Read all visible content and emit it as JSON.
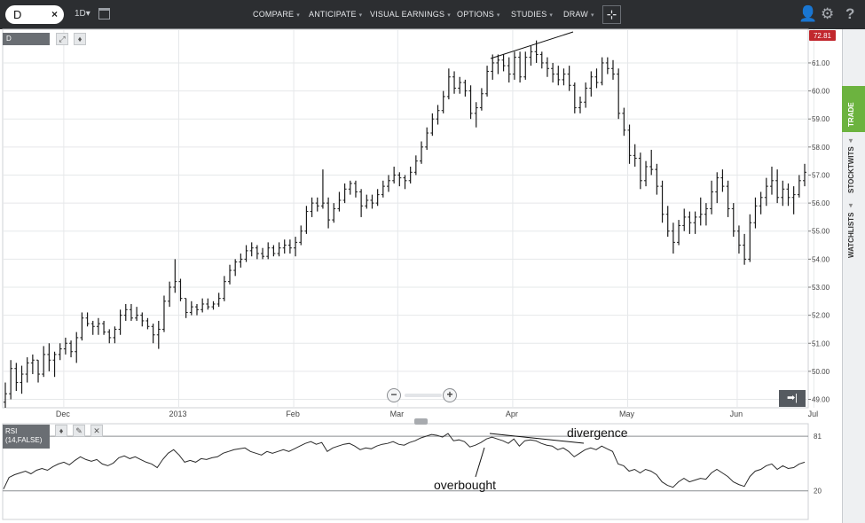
{
  "toolbar": {
    "symbol": "D",
    "clear_label": "×",
    "period": "1D",
    "period_caret": "▾",
    "menus": [
      {
        "label": "COMPARE"
      },
      {
        "label": "ANTICIPATE"
      },
      {
        "label": "VISUAL EARNINGS"
      },
      {
        "label": "OPTIONS"
      },
      {
        "label": "STUDIES"
      },
      {
        "label": "DRAW"
      }
    ],
    "menu_caret": "▾",
    "crosshair_glyph": "⊹",
    "user_glyph": "👤",
    "settings_glyph": "⚙",
    "help_glyph": "?"
  },
  "icons": {
    "calendar": "calendar-icon",
    "crosshair": "crosshair-icon",
    "user": "user-icon",
    "settings": "gear-icon",
    "help": "help-icon",
    "expand": "expand-icon",
    "move": "move-icon",
    "edit": "pencil-icon",
    "close": "close-icon"
  },
  "sidebar": {
    "tabs": [
      {
        "label": "TRADE"
      },
      {
        "label": "STOCKTWITS"
      },
      {
        "label": "WATCHLISTS"
      }
    ],
    "tab_arrow": "◂"
  },
  "panel": {
    "symbol_tag": "D",
    "expand_glyph": "⤢",
    "move_glyph": "♦",
    "rsi_tag_line1": "RSI",
    "rsi_tag_line2": "(14,FALSE)",
    "edit_glyph": "✎",
    "close_glyph": "✕",
    "zoom_out": "−",
    "zoom_in": "+",
    "scroll_end": "➡|"
  },
  "colors": {
    "toolbar_bg": "#2c2e31",
    "trade_tab": "#6cb33f",
    "price_badge": "#c1272d",
    "bars": "#1a1a1a",
    "grid": "#e6e8ea"
  },
  "chart_data": [
    {
      "type": "ohlc",
      "symbol": "D",
      "last_price": "72.81",
      "x_ticks": [
        "Dec",
        "2013",
        "Feb",
        "Mar",
        "Apr",
        "May",
        "Jun",
        "Jul"
      ],
      "y_ticks": [
        "61.00",
        "60.00",
        "59.00",
        "58.00",
        "57.00",
        "56.00",
        "55.00",
        "54.00",
        "53.00",
        "52.00",
        "51.00",
        "50.00",
        "49.00"
      ],
      "ylim": [
        48.7,
        62.2
      ],
      "grid": true,
      "bars": [
        [
          48.9,
          49.6,
          48.7,
          49.2
        ],
        [
          49.2,
          50.4,
          49.0,
          50.1
        ],
        [
          50.1,
          50.3,
          49.3,
          49.6
        ],
        [
          49.6,
          50.2,
          49.2,
          49.9
        ],
        [
          49.9,
          50.5,
          49.6,
          50.3
        ],
        [
          50.3,
          50.6,
          49.9,
          50.4
        ],
        [
          50.4,
          50.4,
          49.6,
          49.9
        ],
        [
          49.9,
          50.9,
          49.8,
          50.6
        ],
        [
          50.6,
          51.0,
          50.0,
          50.4
        ],
        [
          50.4,
          50.7,
          49.8,
          50.6
        ],
        [
          50.6,
          51.0,
          50.4,
          50.8
        ],
        [
          50.8,
          51.2,
          50.6,
          51.0
        ],
        [
          51.0,
          51.1,
          50.5,
          50.7
        ],
        [
          50.7,
          51.4,
          50.3,
          51.2
        ],
        [
          51.2,
          52.1,
          51.1,
          51.9
        ],
        [
          51.9,
          52.1,
          51.6,
          51.7
        ],
        [
          51.7,
          51.8,
          51.3,
          51.6
        ],
        [
          51.6,
          51.9,
          51.3,
          51.7
        ],
        [
          51.7,
          51.8,
          51.3,
          51.4
        ],
        [
          51.4,
          51.5,
          51.0,
          51.2
        ],
        [
          51.2,
          51.6,
          51.0,
          51.5
        ],
        [
          51.5,
          52.2,
          51.3,
          52.0
        ],
        [
          52.0,
          52.4,
          51.8,
          52.2
        ],
        [
          52.2,
          52.4,
          51.8,
          51.9
        ],
        [
          51.9,
          52.3,
          51.8,
          52.0
        ],
        [
          52.0,
          52.1,
          51.6,
          51.8
        ],
        [
          51.8,
          51.9,
          51.5,
          51.6
        ],
        [
          51.6,
          51.7,
          51.0,
          51.3
        ],
        [
          51.3,
          51.8,
          50.8,
          51.5
        ],
        [
          51.5,
          52.7,
          51.4,
          52.5
        ],
        [
          52.5,
          53.2,
          52.3,
          53.0
        ],
        [
          53.0,
          54.0,
          52.8,
          53.2
        ],
        [
          53.2,
          53.3,
          52.5,
          52.6
        ],
        [
          52.6,
          52.6,
          51.9,
          52.1
        ],
        [
          52.1,
          52.5,
          52.0,
          52.3
        ],
        [
          52.3,
          52.4,
          52.0,
          52.2
        ],
        [
          52.2,
          52.6,
          52.1,
          52.4
        ],
        [
          52.4,
          52.6,
          52.2,
          52.3
        ],
        [
          52.3,
          52.5,
          52.2,
          52.4
        ],
        [
          52.4,
          52.8,
          52.3,
          52.6
        ],
        [
          52.6,
          53.4,
          52.5,
          53.2
        ],
        [
          53.2,
          53.8,
          53.1,
          53.6
        ],
        [
          53.6,
          54.0,
          53.4,
          53.9
        ],
        [
          53.9,
          54.2,
          53.7,
          54.0
        ],
        [
          54.0,
          54.5,
          53.9,
          54.3
        ],
        [
          54.3,
          54.6,
          54.1,
          54.4
        ],
        [
          54.4,
          54.5,
          54.0,
          54.2
        ],
        [
          54.2,
          54.4,
          54.0,
          54.1
        ],
        [
          54.1,
          54.6,
          54.0,
          54.4
        ],
        [
          54.4,
          54.5,
          54.1,
          54.2
        ],
        [
          54.2,
          54.6,
          54.1,
          54.4
        ],
        [
          54.4,
          54.7,
          54.2,
          54.5
        ],
        [
          54.5,
          54.7,
          54.2,
          54.4
        ],
        [
          54.4,
          54.8,
          54.1,
          54.6
        ],
        [
          54.6,
          55.2,
          54.5,
          55.0
        ],
        [
          55.0,
          55.9,
          54.9,
          55.7
        ],
        [
          55.7,
          56.2,
          55.5,
          56.0
        ],
        [
          56.0,
          56.2,
          55.7,
          55.9
        ],
        [
          55.9,
          57.2,
          55.8,
          56.0
        ],
        [
          56.0,
          56.2,
          55.1,
          55.4
        ],
        [
          55.4,
          56.0,
          55.3,
          55.8
        ],
        [
          55.8,
          56.4,
          55.7,
          56.1
        ],
        [
          56.1,
          56.7,
          56.0,
          56.5
        ],
        [
          56.5,
          56.8,
          56.3,
          56.7
        ],
        [
          56.7,
          56.8,
          56.2,
          56.4
        ],
        [
          56.4,
          56.5,
          55.5,
          55.9
        ],
        [
          55.9,
          56.3,
          55.8,
          56.1
        ],
        [
          56.1,
          56.3,
          55.8,
          56.0
        ],
        [
          56.0,
          56.5,
          55.9,
          56.3
        ],
        [
          56.3,
          56.8,
          56.2,
          56.6
        ],
        [
          56.6,
          57.0,
          56.4,
          56.8
        ],
        [
          56.8,
          57.3,
          56.7,
          57.0
        ],
        [
          57.0,
          57.1,
          56.6,
          56.9
        ],
        [
          56.9,
          57.0,
          56.5,
          56.8
        ],
        [
          56.8,
          57.3,
          56.7,
          57.1
        ],
        [
          57.1,
          57.7,
          57.0,
          57.5
        ],
        [
          57.5,
          58.2,
          57.4,
          58.0
        ],
        [
          58.0,
          58.7,
          57.9,
          58.5
        ],
        [
          58.5,
          59.2,
          58.4,
          59.0
        ],
        [
          59.0,
          59.5,
          58.8,
          59.3
        ],
        [
          59.3,
          60.0,
          59.2,
          59.8
        ],
        [
          59.8,
          60.8,
          59.7,
          60.5
        ],
        [
          60.5,
          60.7,
          59.9,
          60.1
        ],
        [
          60.1,
          60.5,
          59.9,
          60.3
        ],
        [
          60.3,
          60.4,
          59.8,
          60.0
        ],
        [
          60.0,
          60.2,
          59.0,
          59.2
        ],
        [
          59.2,
          59.6,
          58.7,
          59.4
        ],
        [
          59.4,
          60.1,
          59.3,
          59.9
        ],
        [
          59.9,
          60.9,
          59.8,
          60.7
        ],
        [
          60.7,
          61.3,
          60.4,
          61.0
        ],
        [
          61.0,
          61.3,
          60.6,
          61.1
        ],
        [
          61.1,
          61.3,
          60.7,
          60.9
        ],
        [
          60.9,
          61.2,
          60.3,
          60.6
        ],
        [
          60.6,
          61.4,
          60.4,
          61.2
        ],
        [
          61.2,
          61.4,
          60.3,
          60.5
        ],
        [
          60.5,
          61.4,
          60.4,
          61.2
        ],
        [
          61.2,
          61.6,
          60.9,
          61.4
        ],
        [
          61.4,
          61.8,
          61.0,
          61.3
        ],
        [
          61.3,
          61.4,
          60.8,
          61.0
        ],
        [
          61.0,
          61.2,
          60.5,
          60.8
        ],
        [
          60.8,
          61.0,
          60.3,
          60.6
        ],
        [
          60.6,
          60.9,
          60.2,
          60.4
        ],
        [
          60.4,
          60.8,
          60.2,
          60.6
        ],
        [
          60.6,
          60.9,
          60.0,
          60.2
        ],
        [
          60.2,
          60.3,
          59.2,
          59.4
        ],
        [
          59.4,
          59.8,
          59.2,
          59.6
        ],
        [
          59.6,
          60.3,
          59.4,
          60.1
        ],
        [
          60.1,
          60.7,
          59.8,
          60.5
        ],
        [
          60.5,
          60.8,
          60.1,
          60.3
        ],
        [
          60.3,
          61.2,
          60.2,
          61.0
        ],
        [
          61.0,
          61.2,
          60.6,
          60.8
        ],
        [
          60.8,
          61.1,
          60.4,
          60.6
        ],
        [
          60.6,
          60.8,
          59.0,
          59.2
        ],
        [
          59.2,
          59.4,
          58.4,
          58.6
        ],
        [
          58.6,
          58.8,
          57.4,
          57.7
        ],
        [
          57.7,
          58.1,
          57.3,
          57.6
        ],
        [
          57.6,
          57.8,
          56.5,
          56.8
        ],
        [
          56.8,
          57.5,
          56.6,
          57.3
        ],
        [
          57.3,
          57.9,
          57.0,
          57.2
        ],
        [
          57.2,
          57.4,
          56.3,
          56.6
        ],
        [
          56.6,
          56.8,
          55.3,
          55.6
        ],
        [
          55.6,
          55.9,
          54.8,
          55.0
        ],
        [
          55.0,
          55.3,
          54.2,
          54.6
        ],
        [
          54.6,
          55.4,
          54.5,
          55.2
        ],
        [
          55.2,
          55.8,
          55.0,
          55.5
        ],
        [
          55.5,
          55.7,
          54.9,
          55.3
        ],
        [
          55.3,
          55.7,
          54.9,
          55.5
        ],
        [
          55.5,
          56.2,
          55.2,
          55.6
        ],
        [
          55.6,
          56.0,
          55.2,
          55.8
        ],
        [
          55.8,
          56.8,
          55.6,
          56.4
        ],
        [
          56.4,
          57.1,
          56.0,
          56.9
        ],
        [
          56.9,
          57.2,
          56.4,
          56.6
        ],
        [
          56.6,
          56.8,
          55.5,
          55.8
        ],
        [
          55.8,
          56.0,
          54.8,
          55.0
        ],
        [
          55.0,
          55.2,
          54.2,
          54.5
        ],
        [
          54.5,
          54.9,
          53.8,
          54.0
        ],
        [
          54.0,
          55.6,
          53.9,
          55.3
        ],
        [
          55.3,
          56.2,
          55.1,
          55.9
        ],
        [
          55.9,
          56.4,
          55.6,
          56.2
        ],
        [
          56.2,
          56.9,
          55.9,
          56.6
        ],
        [
          56.6,
          57.3,
          56.3,
          56.8
        ],
        [
          56.8,
          57.2,
          56.0,
          56.2
        ],
        [
          56.2,
          56.8,
          55.9,
          56.5
        ],
        [
          56.5,
          56.7,
          55.9,
          56.2
        ],
        [
          56.2,
          56.6,
          55.6,
          56.3
        ],
        [
          56.3,
          57.0,
          56.2,
          56.8
        ],
        [
          56.8,
          57.4,
          56.6,
          57.1
        ]
      ],
      "annotations": [
        "divergence"
      ]
    },
    {
      "type": "line",
      "name": "RSI",
      "y_ticks": [
        "81",
        "20"
      ],
      "ylim": [
        -12,
        95
      ],
      "values": [
        22,
        35,
        38,
        40,
        42,
        39,
        43,
        45,
        43,
        47,
        50,
        52,
        49,
        54,
        58,
        55,
        53,
        55,
        50,
        48,
        51,
        57,
        59,
        56,
        58,
        55,
        52,
        50,
        46,
        55,
        62,
        66,
        60,
        52,
        54,
        52,
        56,
        55,
        57,
        58,
        62,
        64,
        66,
        67,
        68,
        64,
        62,
        60,
        64,
        62,
        64,
        66,
        64,
        67,
        70,
        73,
        75,
        72,
        74,
        64,
        68,
        70,
        72,
        73,
        70,
        66,
        68,
        67,
        70,
        72,
        73,
        75,
        72,
        71,
        74,
        76,
        79,
        81,
        83,
        82,
        80,
        84,
        76,
        77,
        75,
        69,
        71,
        74,
        78,
        80,
        78,
        76,
        73,
        78,
        70,
        76,
        77,
        76,
        73,
        71,
        70,
        66,
        68,
        64,
        58,
        62,
        66,
        68,
        66,
        70,
        67,
        64,
        50,
        48,
        42,
        44,
        40,
        44,
        42,
        38,
        30,
        26,
        24,
        30,
        34,
        30,
        32,
        34,
        33,
        40,
        44,
        40,
        36,
        30,
        27,
        25,
        36,
        42,
        44,
        48,
        50,
        44,
        48,
        45,
        46,
        50,
        52
      ],
      "annotations": [
        "overbought",
        "divergence"
      ]
    }
  ]
}
